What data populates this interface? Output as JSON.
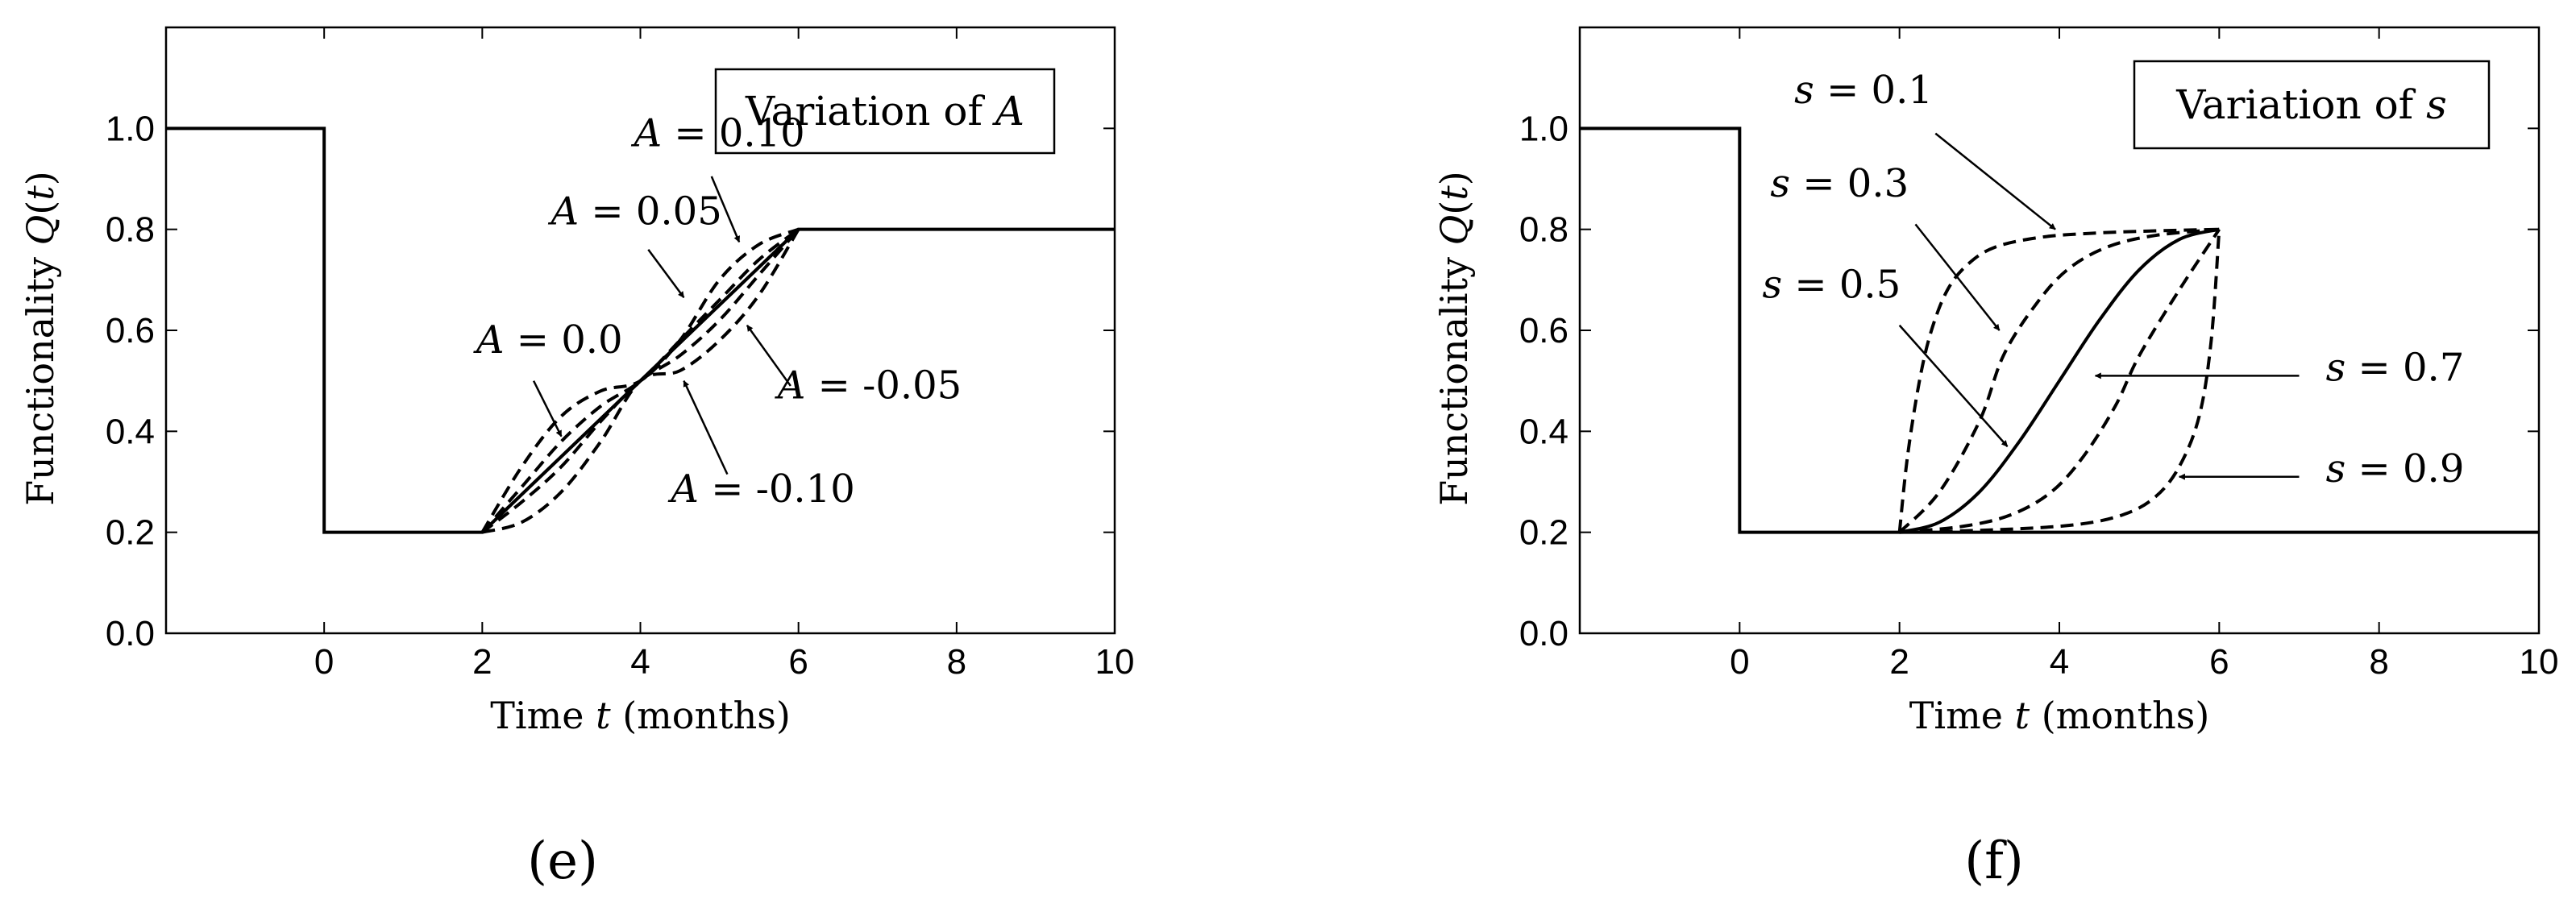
{
  "chart_data": [
    {
      "id": "e",
      "type": "line",
      "panel_label": "(e)",
      "ylabel": "Functionality Q(t)",
      "xlabel": "Time t (months)",
      "xlim": [
        -2,
        10
      ],
      "ylim": [
        0.0,
        1.2
      ],
      "xticks": [
        0,
        2,
        4,
        6,
        8,
        10
      ],
      "yticks": [
        0.0,
        0.2,
        0.4,
        0.6,
        0.8,
        1.0
      ],
      "grid": false,
      "legend_box_text": "Variation of A",
      "baseline": {
        "style": "solid",
        "x": [
          -2,
          0,
          0,
          2,
          2,
          6,
          6,
          10
        ],
        "y": [
          1.0,
          1.0,
          0.2,
          0.2,
          0.2,
          0.8,
          0.8,
          0.8
        ]
      },
      "series": [
        {
          "name": "A = 0.10",
          "style": "dashed",
          "x": [
            2,
            2.5,
            3,
            3.5,
            4,
            4.5,
            5,
            5.5,
            6
          ],
          "y": [
            0.2,
            0.33,
            0.43,
            0.48,
            0.5,
            0.58,
            0.7,
            0.77,
            0.8
          ]
        },
        {
          "name": "A = 0.05",
          "style": "dashed",
          "x": [
            2,
            2.5,
            3,
            3.5,
            4,
            4.5,
            5,
            5.5,
            6
          ],
          "y": [
            0.2,
            0.29,
            0.38,
            0.45,
            0.5,
            0.58,
            0.66,
            0.74,
            0.8
          ]
        },
        {
          "name": "A = 0.0",
          "style": "solid",
          "x": [
            2,
            3,
            4,
            5,
            6
          ],
          "y": [
            0.2,
            0.35,
            0.5,
            0.65,
            0.8
          ]
        },
        {
          "name": "A = -0.05",
          "style": "dashed",
          "x": [
            2,
            2.5,
            3,
            3.5,
            4,
            4.5,
            5,
            5.5,
            6
          ],
          "y": [
            0.2,
            0.26,
            0.33,
            0.42,
            0.5,
            0.55,
            0.62,
            0.71,
            0.8
          ]
        },
        {
          "name": "A = -0.10",
          "style": "dashed",
          "x": [
            2,
            2.5,
            3,
            3.5,
            4,
            4.5,
            5,
            5.5,
            6
          ],
          "y": [
            0.2,
            0.22,
            0.28,
            0.38,
            0.5,
            0.52,
            0.58,
            0.67,
            0.8
          ]
        }
      ],
      "annotations": [
        {
          "text": "A = 0.10",
          "text_x": 5.0,
          "text_y": 0.965,
          "arrow_from": [
            4.9,
            0.905
          ],
          "arrow_to": [
            5.25,
            0.775
          ]
        },
        {
          "text": "A = 0.05",
          "text_x": 3.95,
          "text_y": 0.81,
          "arrow_from": [
            4.1,
            0.76
          ],
          "arrow_to": [
            4.55,
            0.665
          ]
        },
        {
          "text": "A = 0.0",
          "text_x": 2.85,
          "text_y": 0.555,
          "arrow_from": [
            2.65,
            0.5
          ],
          "arrow_to": [
            3.0,
            0.39
          ]
        },
        {
          "text": "A = -0.05",
          "text_x": 6.9,
          "text_y": 0.465,
          "arrow_from": [
            5.9,
            0.49
          ],
          "arrow_to": [
            5.35,
            0.61
          ]
        },
        {
          "text": "A = -0.10",
          "text_x": 5.55,
          "text_y": 0.26,
          "arrow_from": [
            5.1,
            0.315
          ],
          "arrow_to": [
            4.55,
            0.5
          ]
        }
      ]
    },
    {
      "id": "f",
      "type": "line",
      "panel_label": "(f)",
      "ylabel": "Functionality Q(t)",
      "xlabel": "Time t (months)",
      "xlim": [
        -2,
        10
      ],
      "ylim": [
        0.0,
        1.2
      ],
      "xticks": [
        0,
        2,
        4,
        6,
        8,
        10
      ],
      "yticks": [
        0.0,
        0.2,
        0.4,
        0.6,
        0.8,
        1.0
      ],
      "grid": false,
      "legend_box_text": "Variation of s",
      "baseline": {
        "style": "solid",
        "x": [
          -2,
          0,
          0,
          10
        ],
        "y": [
          1.0,
          1.0,
          0.2,
          0.2
        ]
      },
      "series": [
        {
          "name": "s = 0.1",
          "style": "dashed",
          "x": [
            2,
            2.1,
            2.25,
            2.4,
            2.6,
            2.85,
            3.2,
            3.8,
            4.5,
            5.2,
            6
          ],
          "y": [
            0.2,
            0.35,
            0.5,
            0.6,
            0.68,
            0.73,
            0.765,
            0.785,
            0.793,
            0.797,
            0.8
          ]
        },
        {
          "name": "s = 0.3",
          "style": "dashed",
          "x": [
            2,
            2.5,
            3,
            3.3,
            3.7,
            4.1,
            4.6,
            5.2,
            6
          ],
          "y": [
            0.2,
            0.28,
            0.42,
            0.55,
            0.65,
            0.72,
            0.765,
            0.788,
            0.8
          ]
        },
        {
          "name": "s = 0.5",
          "style": "solid",
          "x": [
            2,
            2.5,
            3,
            3.5,
            4,
            4.5,
            5,
            5.5,
            6
          ],
          "y": [
            0.2,
            0.22,
            0.28,
            0.38,
            0.5,
            0.62,
            0.72,
            0.78,
            0.8
          ]
        },
        {
          "name": "s = 0.7",
          "style": "dashed",
          "x": [
            2,
            2.8,
            3.4,
            3.9,
            4.3,
            4.7,
            5.0,
            5.5,
            6
          ],
          "y": [
            0.2,
            0.212,
            0.235,
            0.28,
            0.35,
            0.45,
            0.55,
            0.68,
            0.8
          ]
        },
        {
          "name": "s = 0.9",
          "style": "dashed",
          "x": [
            2,
            3.2,
            4.2,
            4.8,
            5.2,
            5.5,
            5.75,
            5.9,
            6
          ],
          "y": [
            0.2,
            0.205,
            0.215,
            0.235,
            0.27,
            0.33,
            0.43,
            0.58,
            0.8
          ]
        }
      ],
      "annotations": [
        {
          "text": "s = 0.1",
          "text_x": 1.55,
          "text_y": 1.05,
          "arrow_from": [
            2.45,
            0.99
          ],
          "arrow_to": [
            3.95,
            0.8
          ]
        },
        {
          "text": "s = 0.3",
          "text_x": 1.25,
          "text_y": 0.865,
          "arrow_from": [
            2.2,
            0.81
          ],
          "arrow_to": [
            3.25,
            0.6
          ]
        },
        {
          "text": "s = 0.5",
          "text_x": 1.15,
          "text_y": 0.665,
          "arrow_from": [
            2.0,
            0.61
          ],
          "arrow_to": [
            3.35,
            0.37
          ]
        },
        {
          "text": "s = 0.7",
          "text_x": 8.2,
          "text_y": 0.5,
          "arrow_from": [
            7.0,
            0.51
          ],
          "arrow_to": [
            4.45,
            0.51
          ]
        },
        {
          "text": "s = 0.9",
          "text_x": 8.2,
          "text_y": 0.3,
          "arrow_from": [
            7.0,
            0.31
          ],
          "arrow_to": [
            5.5,
            0.31
          ]
        }
      ]
    }
  ]
}
